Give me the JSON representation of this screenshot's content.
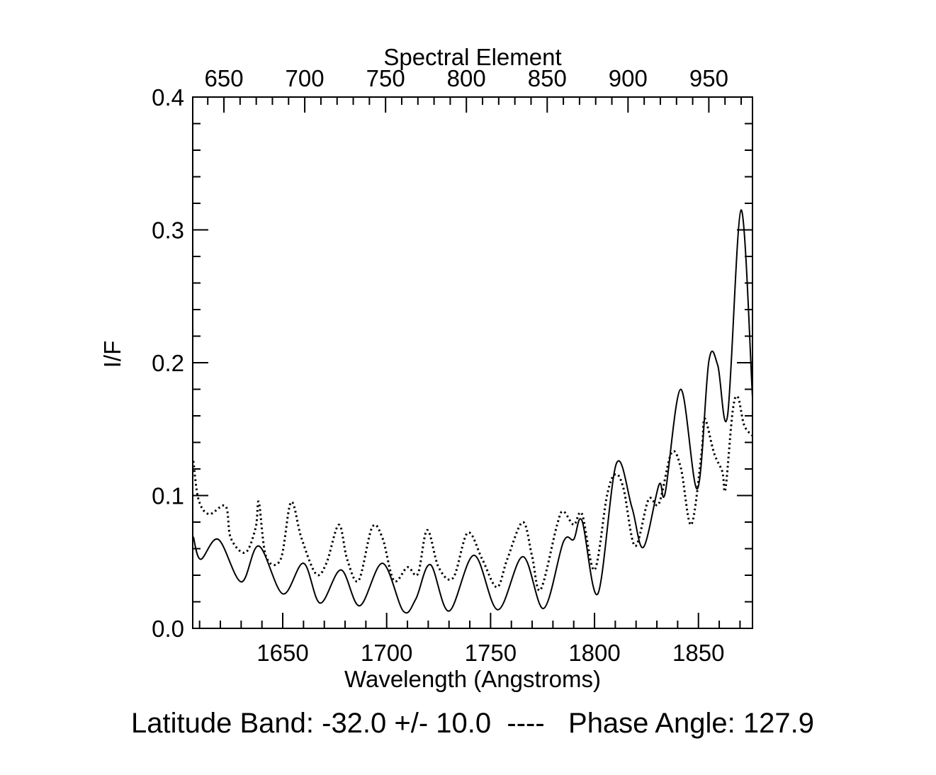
{
  "chart_data": {
    "type": "line",
    "title": "",
    "xlabel": "Wavelength (Angstroms)",
    "x2label": "Spectral Element",
    "ylabel": "I/F",
    "caption": "Latitude Band: -32.0 +/- 10.0  ----   Phase Angle: 127.9",
    "xlim": [
      1606.7,
      1876
    ],
    "x2lim": [
      630.7,
      977
    ],
    "ylim": [
      0.0,
      0.4
    ],
    "xticks": [
      "1650",
      "1700",
      "1750",
      "1800",
      "1850"
    ],
    "xtick_values": [
      1650,
      1700,
      1750,
      1800,
      1850
    ],
    "x2ticks": [
      "650",
      "700",
      "750",
      "800",
      "850",
      "900",
      "950"
    ],
    "x2tick_values": [
      650,
      700,
      750,
      800,
      850,
      900,
      950
    ],
    "yticks": [
      "0.0",
      "0.1",
      "0.2",
      "0.3",
      "0.4"
    ],
    "ytick_values": [
      0.0,
      0.1,
      0.2,
      0.3,
      0.4
    ],
    "grid": false,
    "line_color": "#000000",
    "series": [
      {
        "style": "solid",
        "x": [
          1607,
          1610.5,
          1619,
          1630,
          1638.5,
          1650,
          1660,
          1668,
          1678,
          1687,
          1698,
          1708,
          1714,
          1721,
          1730,
          1742,
          1753.5,
          1765.5,
          1775.5,
          1785,
          1790,
          1794,
          1801.6,
          1810.5,
          1818,
          1823.5,
          1831,
          1834,
          1841.5,
          1849.5,
          1855,
          1859.3,
          1864,
          1870.5,
          1876
        ],
        "y": [
          0.069,
          0.052,
          0.067,
          0.035,
          0.062,
          0.026,
          0.049,
          0.019,
          0.044,
          0.017,
          0.049,
          0.013,
          0.022,
          0.048,
          0.013,
          0.055,
          0.014,
          0.054,
          0.015,
          0.065,
          0.067,
          0.081,
          0.026,
          0.124,
          0.091,
          0.061,
          0.108,
          0.102,
          0.18,
          0.105,
          0.201,
          0.198,
          0.16,
          0.315,
          0.174
        ]
      },
      {
        "style": "dotted",
        "x": [
          1607,
          1609.5,
          1614.5,
          1622.5,
          1625,
          1632,
          1637,
          1638.5,
          1642,
          1649,
          1654,
          1659,
          1666,
          1671,
          1677,
          1681,
          1686.5,
          1693,
          1698,
          1703.5,
          1710,
          1715,
          1719.5,
          1725,
          1732,
          1739,
          1746,
          1753,
          1758,
          1765.5,
          1770,
          1774,
          1782,
          1785,
          1790,
          1794,
          1800,
          1806,
          1810,
          1814,
          1819.5,
          1826,
          1831,
          1837,
          1841.5,
          1846.5,
          1851.5,
          1853,
          1857.5,
          1861.5,
          1863,
          1866.5,
          1869,
          1872,
          1876
        ],
        "y": [
          0.126,
          0.097,
          0.086,
          0.092,
          0.068,
          0.057,
          0.076,
          0.095,
          0.054,
          0.052,
          0.095,
          0.068,
          0.041,
          0.049,
          0.078,
          0.052,
          0.036,
          0.076,
          0.068,
          0.036,
          0.046,
          0.041,
          0.074,
          0.046,
          0.038,
          0.072,
          0.052,
          0.031,
          0.052,
          0.08,
          0.054,
          0.029,
          0.078,
          0.088,
          0.078,
          0.086,
          0.044,
          0.1,
          0.116,
          0.105,
          0.062,
          0.097,
          0.094,
          0.132,
          0.121,
          0.078,
          0.132,
          0.158,
          0.132,
          0.118,
          0.105,
          0.164,
          0.174,
          0.153,
          0.145
        ]
      }
    ]
  }
}
